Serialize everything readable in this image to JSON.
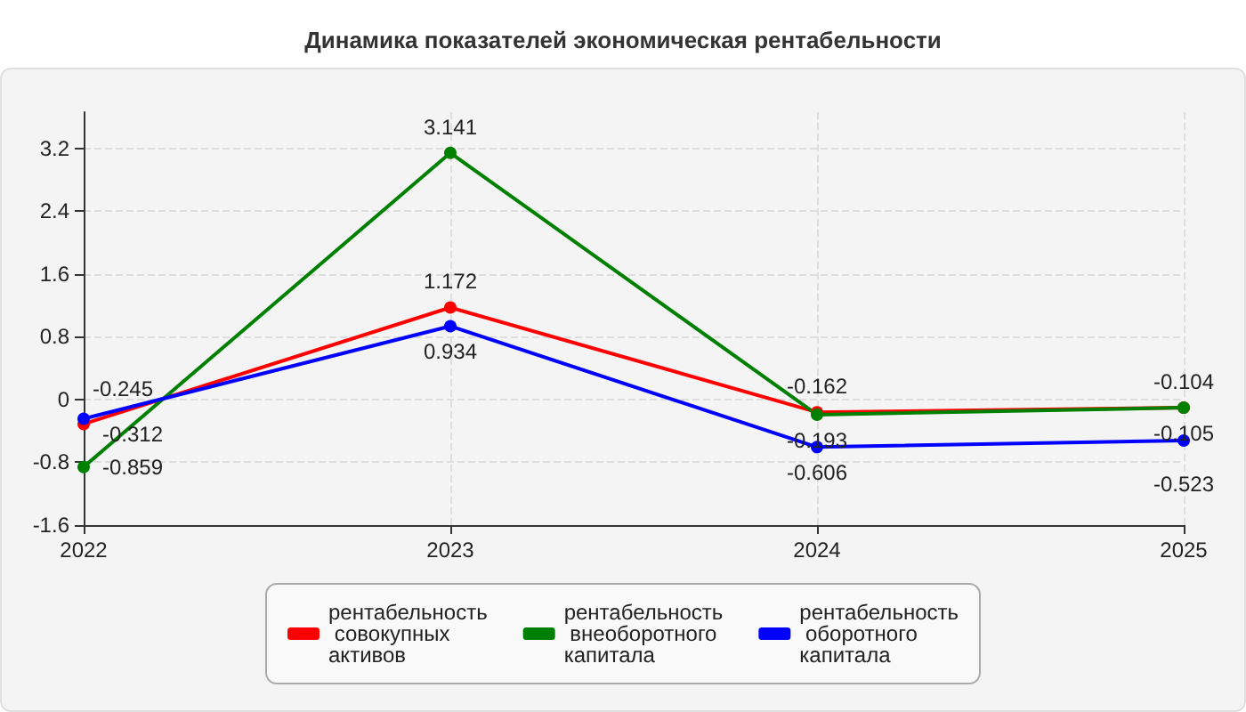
{
  "chart_data": {
    "type": "line",
    "title": "Динамика показателей экономическая рентабельности",
    "categories": [
      "2022",
      "2023",
      "2024",
      "2025"
    ],
    "series": [
      {
        "name": "рентабельность совокупных активов",
        "color": "#ff0000",
        "values": [
          -0.312,
          1.172,
          -0.162,
          -0.104
        ]
      },
      {
        "name": "рентабельность внеоборотного капитала",
        "color": "#008000",
        "values": [
          -0.859,
          3.141,
          -0.193,
          -0.105
        ]
      },
      {
        "name": "рентабельность оборотного капитала",
        "color": "#0000ff",
        "values": [
          -0.245,
          0.934,
          -0.606,
          -0.523
        ]
      }
    ],
    "ylim": [
      -1.6,
      3.66
    ],
    "yticks": [
      -1.6,
      -0.8,
      0,
      0.8,
      1.6,
      2.4,
      3.2
    ],
    "grid": true,
    "legend": "bottom",
    "data_labels": true,
    "marker": "circle",
    "line_style": "solid"
  }
}
